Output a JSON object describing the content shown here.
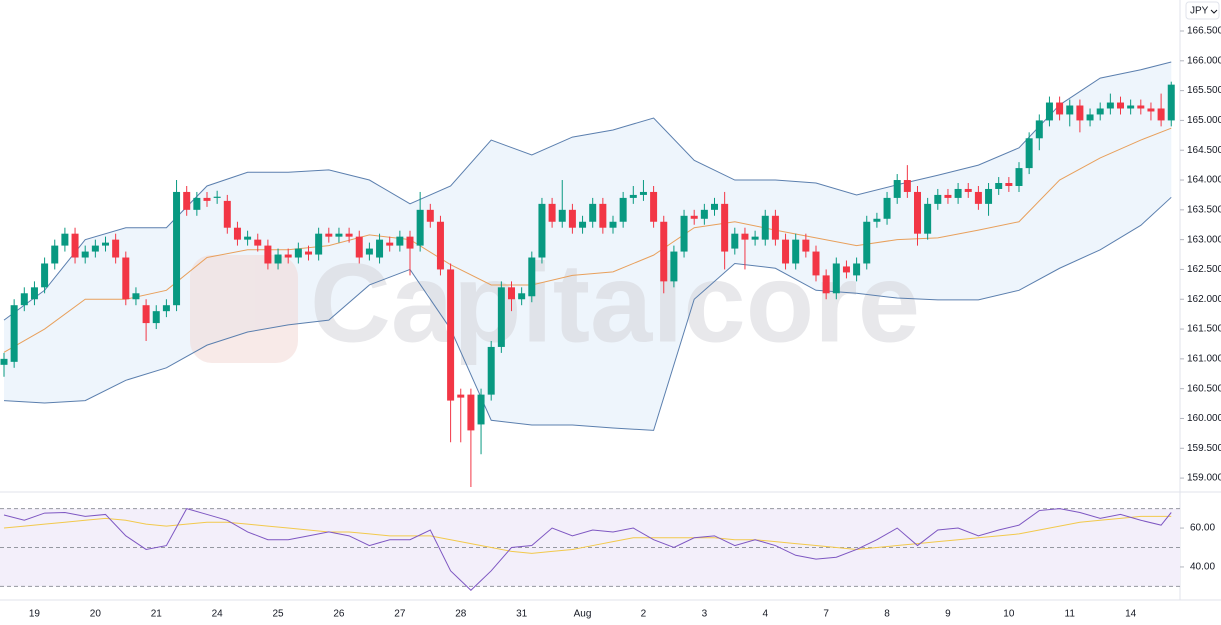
{
  "chart_data": [
    {
      "type": "candlestick",
      "currency": "JPY",
      "watermark": "Capitalcore",
      "up_color": "#089981",
      "down_color": "#f23645",
      "categories": [
        null,
        null,
        null,
        "19",
        null,
        null,
        null,
        null,
        null,
        "20",
        null,
        null,
        null,
        null,
        null,
        "21",
        null,
        null,
        null,
        null,
        null,
        "24",
        null,
        null,
        null,
        null,
        null,
        "25",
        null,
        null,
        null,
        null,
        null,
        "26",
        null,
        null,
        null,
        null,
        null,
        "27",
        null,
        null,
        null,
        null,
        null,
        "28",
        null,
        null,
        null,
        null,
        null,
        "31",
        null,
        null,
        null,
        null,
        null,
        "Aug",
        null,
        null,
        null,
        null,
        null,
        "2",
        null,
        null,
        null,
        null,
        null,
        "3",
        null,
        null,
        null,
        null,
        null,
        "4",
        null,
        null,
        null,
        null,
        null,
        "7",
        null,
        null,
        null,
        null,
        null,
        "8",
        null,
        null,
        null,
        null,
        null,
        "9",
        null,
        null,
        null,
        null,
        null,
        "10",
        null,
        null,
        null,
        null,
        null,
        "11",
        null,
        null,
        null,
        null,
        null,
        "14",
        null,
        null,
        null,
        null
      ],
      "open": [
        160.9,
        160.95,
        161.9,
        162.0,
        162.2,
        162.6,
        162.9,
        163.1,
        162.7,
        162.8,
        162.9,
        163.0,
        162.7,
        162.0,
        161.9,
        161.6,
        161.8,
        161.9,
        163.8,
        163.5,
        163.7,
        163.7,
        163.65,
        163.2,
        163.0,
        163.0,
        162.9,
        162.6,
        162.75,
        162.7,
        162.8,
        162.75,
        163.1,
        163.05,
        163.1,
        163.05,
        162.75,
        162.7,
        162.95,
        162.9,
        163.05,
        162.9,
        163.5,
        163.3,
        162.5,
        160.4,
        160.4,
        159.9,
        160.4,
        161.2,
        162.2,
        162.0,
        162.05,
        162.7,
        163.6,
        163.3,
        163.5,
        163.2,
        163.3,
        163.6,
        163.2,
        163.3,
        163.7,
        163.75,
        163.8,
        163.3,
        162.3,
        162.8,
        163.4,
        163.35,
        163.5,
        163.6,
        162.85,
        163.1,
        163.0,
        163.0,
        163.4,
        163.0,
        162.6,
        163.0,
        162.8,
        162.4,
        162.1,
        162.55,
        162.4,
        162.6,
        163.3,
        163.35,
        163.7,
        164.0,
        163.8,
        163.1,
        163.6,
        163.75,
        163.7,
        163.85,
        163.8,
        163.6,
        163.85,
        163.95,
        163.9,
        164.2,
        164.7,
        165.0,
        165.3,
        165.1,
        165.25,
        165.0,
        165.1,
        165.2,
        165.3,
        165.2,
        165.25,
        165.2,
        165.2,
        165.0
      ],
      "high": [
        161.1,
        162.0,
        162.2,
        162.3,
        162.7,
        163.0,
        163.2,
        163.2,
        162.9,
        163.0,
        163.05,
        163.1,
        162.8,
        162.2,
        162.0,
        161.9,
        162.0,
        164.0,
        163.9,
        163.8,
        163.8,
        163.82,
        163.75,
        163.3,
        163.15,
        163.1,
        163.0,
        162.85,
        162.85,
        162.95,
        162.9,
        163.2,
        163.2,
        163.2,
        163.2,
        163.15,
        162.95,
        163.1,
        163.05,
        163.15,
        163.15,
        163.8,
        163.6,
        163.4,
        162.6,
        160.5,
        160.5,
        160.5,
        161.3,
        162.3,
        162.3,
        162.2,
        162.8,
        163.7,
        163.7,
        164.0,
        163.6,
        163.4,
        163.7,
        163.7,
        163.4,
        163.8,
        163.9,
        164.0,
        163.9,
        163.4,
        162.9,
        163.5,
        163.5,
        163.6,
        163.7,
        163.8,
        163.2,
        163.2,
        163.15,
        163.5,
        163.5,
        163.1,
        163.1,
        163.1,
        162.9,
        162.5,
        162.7,
        162.65,
        162.7,
        163.4,
        163.45,
        163.8,
        164.1,
        164.25,
        163.9,
        163.7,
        163.85,
        163.85,
        163.95,
        163.95,
        163.9,
        163.95,
        164.05,
        164.05,
        164.3,
        164.8,
        165.1,
        165.4,
        165.4,
        165.35,
        165.35,
        165.2,
        165.3,
        165.45,
        165.4,
        165.35,
        165.35,
        165.3,
        165.45,
        165.65
      ],
      "low": [
        160.7,
        160.85,
        161.8,
        161.9,
        162.1,
        162.5,
        162.8,
        162.6,
        162.6,
        162.7,
        162.8,
        162.6,
        161.9,
        161.9,
        161.3,
        161.5,
        161.7,
        161.8,
        163.4,
        163.4,
        163.55,
        163.6,
        163.1,
        162.9,
        162.9,
        162.8,
        162.5,
        162.5,
        162.6,
        162.6,
        162.65,
        162.65,
        162.95,
        162.95,
        162.95,
        162.6,
        162.65,
        162.6,
        162.8,
        162.8,
        162.4,
        162.8,
        163.2,
        162.4,
        159.6,
        159.6,
        158.85,
        159.4,
        160.3,
        161.1,
        161.8,
        161.9,
        161.95,
        162.6,
        163.2,
        163.2,
        163.1,
        163.1,
        163.2,
        163.1,
        163.1,
        163.2,
        163.6,
        163.65,
        163.2,
        162.1,
        162.2,
        162.7,
        163.25,
        163.25,
        163.4,
        162.5,
        162.75,
        162.5,
        162.9,
        162.9,
        162.9,
        162.5,
        162.5,
        162.7,
        162.3,
        162.0,
        162.0,
        162.35,
        162.3,
        162.5,
        163.2,
        163.25,
        163.6,
        163.7,
        162.9,
        163.0,
        163.5,
        163.6,
        163.6,
        163.7,
        163.5,
        163.4,
        163.75,
        163.8,
        163.8,
        164.1,
        164.5,
        164.9,
        165.0,
        164.9,
        164.8,
        164.9,
        165.0,
        165.1,
        165.1,
        165.1,
        165.1,
        165.0,
        164.9,
        164.9
      ],
      "close": [
        161.0,
        161.9,
        162.1,
        162.2,
        162.6,
        162.9,
        163.1,
        162.7,
        162.8,
        162.9,
        162.95,
        162.7,
        162.0,
        162.1,
        161.6,
        161.8,
        161.9,
        163.8,
        163.5,
        163.7,
        163.65,
        163.72,
        163.2,
        163.0,
        163.05,
        162.9,
        162.6,
        162.75,
        162.7,
        162.85,
        162.75,
        163.1,
        163.05,
        163.1,
        163.05,
        162.7,
        162.85,
        163.0,
        162.9,
        163.05,
        162.85,
        163.5,
        163.3,
        162.5,
        160.3,
        160.35,
        159.8,
        160.4,
        161.2,
        162.2,
        162.0,
        162.1,
        162.7,
        163.6,
        163.3,
        163.5,
        163.2,
        163.3,
        163.6,
        163.2,
        163.3,
        163.7,
        163.75,
        163.8,
        163.3,
        162.3,
        162.8,
        163.4,
        163.35,
        163.5,
        163.6,
        162.8,
        163.1,
        163.0,
        163.05,
        163.4,
        163.0,
        162.6,
        163.0,
        162.8,
        162.4,
        162.1,
        162.6,
        162.45,
        162.6,
        163.3,
        163.35,
        163.7,
        164.0,
        163.8,
        163.1,
        163.6,
        163.75,
        163.7,
        163.85,
        163.8,
        163.6,
        163.85,
        163.95,
        163.9,
        164.2,
        164.7,
        165.0,
        165.3,
        165.1,
        165.25,
        165.0,
        165.1,
        165.2,
        165.3,
        165.2,
        165.25,
        165.2,
        165.15,
        165.0,
        165.6
      ],
      "bands": {
        "color": "#5b7fae",
        "middle_color": "#e8a05c",
        "fill": "#eef5fc",
        "x": [
          0,
          4,
          8,
          12,
          16,
          20,
          24,
          28,
          32,
          36,
          40,
          44,
          48,
          52,
          56,
          60,
          64,
          68,
          72,
          76,
          80,
          84,
          88,
          92,
          96,
          100,
          104,
          108,
          112,
          115
        ],
        "upper": [
          161.65,
          162.15,
          163.0,
          163.2,
          163.2,
          163.9,
          164.13,
          164.13,
          164.17,
          164.0,
          163.6,
          163.9,
          164.67,
          164.42,
          164.72,
          164.84,
          165.04,
          164.33,
          164.0,
          164.0,
          163.95,
          163.75,
          163.92,
          164.08,
          164.25,
          164.54,
          165.26,
          165.71,
          165.85,
          165.98
        ],
        "middle": [
          161.11,
          161.5,
          162.0,
          162.0,
          162.15,
          162.7,
          162.83,
          162.83,
          162.9,
          163.08,
          163.0,
          162.58,
          162.24,
          162.24,
          162.4,
          162.46,
          162.74,
          163.2,
          163.3,
          163.16,
          163.03,
          162.9,
          163.0,
          163.03,
          163.16,
          163.3,
          164.0,
          164.37,
          164.67,
          164.87
        ],
        "lower": [
          160.3,
          160.26,
          160.3,
          160.64,
          160.85,
          161.23,
          161.45,
          161.57,
          161.65,
          162.24,
          162.5,
          161.5,
          159.97,
          159.89,
          159.89,
          159.84,
          159.8,
          162.0,
          162.6,
          162.52,
          162.15,
          162.1,
          162.02,
          161.99,
          161.99,
          162.15,
          162.52,
          162.83,
          163.24,
          163.71
        ]
      },
      "ylim": [
        158.8,
        167.02
      ],
      "yticks": [
        {
          "value": 159,
          "label": "159.000"
        },
        {
          "value": 159.5,
          "label": "159.500"
        },
        {
          "value": 160,
          "label": "160.000"
        },
        {
          "value": 160.5,
          "label": "160.500"
        },
        {
          "value": 161,
          "label": "161.000"
        },
        {
          "value": 161.5,
          "label": "161.500"
        },
        {
          "value": 162,
          "label": "162.000"
        },
        {
          "value": 162.5,
          "label": "162.500"
        },
        {
          "value": 163,
          "label": "163.000"
        },
        {
          "value": 163.5,
          "label": "163.500"
        },
        {
          "value": 164,
          "label": "164.000"
        },
        {
          "value": 164.5,
          "label": "164.500"
        },
        {
          "value": 165,
          "label": "165.000"
        },
        {
          "value": 165.5,
          "label": "165.500"
        },
        {
          "value": 166,
          "label": "166.000"
        },
        {
          "value": 166.5,
          "label": "166.500"
        }
      ]
    },
    {
      "type": "line",
      "fill": "#f3effa",
      "x": [
        0,
        2,
        4,
        6,
        8,
        10,
        12,
        14,
        16,
        18,
        20,
        22,
        24,
        26,
        28,
        30,
        32,
        34,
        36,
        38,
        40,
        42,
        44,
        46,
        48,
        50,
        52,
        54,
        56,
        58,
        60,
        62,
        64,
        66,
        68,
        70,
        72,
        74,
        76,
        78,
        80,
        82,
        84,
        86,
        88,
        90,
        92,
        94,
        96,
        98,
        100,
        102,
        104,
        106,
        108,
        110,
        112,
        114,
        115
      ],
      "series": [
        {
          "color": "#7e57c2",
          "values": [
            66.7,
            64,
            67.7,
            68,
            66,
            67,
            56,
            49,
            51,
            70,
            67,
            64,
            58,
            54,
            54,
            56,
            58,
            56,
            51,
            54,
            54,
            59,
            38,
            28,
            38,
            50,
            51,
            60,
            56,
            59,
            58,
            60,
            54,
            50,
            55,
            56,
            51,
            54,
            51,
            46,
            44,
            45,
            49,
            54,
            60,
            51,
            59,
            60,
            56,
            59,
            61.5,
            69,
            70,
            68,
            65,
            67,
            64,
            61.5,
            68
          ]
        },
        {
          "color": "#f2c94c",
          "values": [
            60,
            61,
            62,
            63,
            64,
            65,
            64,
            62,
            61,
            62,
            63,
            63,
            62,
            61,
            60,
            59,
            58,
            58,
            57,
            56,
            56,
            56,
            54,
            52,
            50,
            48,
            47,
            48,
            49,
            51,
            53,
            55,
            55,
            55,
            55,
            55,
            54,
            54,
            53,
            52,
            51,
            50,
            49,
            50,
            51,
            52,
            53,
            54,
            55,
            56,
            57,
            59,
            61,
            63,
            64,
            65,
            66,
            66,
            66
          ]
        }
      ],
      "levels": [
        70,
        50,
        30
      ],
      "ylim": [
        23,
        77
      ],
      "yticks": [
        {
          "value": 60,
          "label": "60.00"
        },
        {
          "value": 40,
          "label": "40.00"
        }
      ]
    }
  ]
}
